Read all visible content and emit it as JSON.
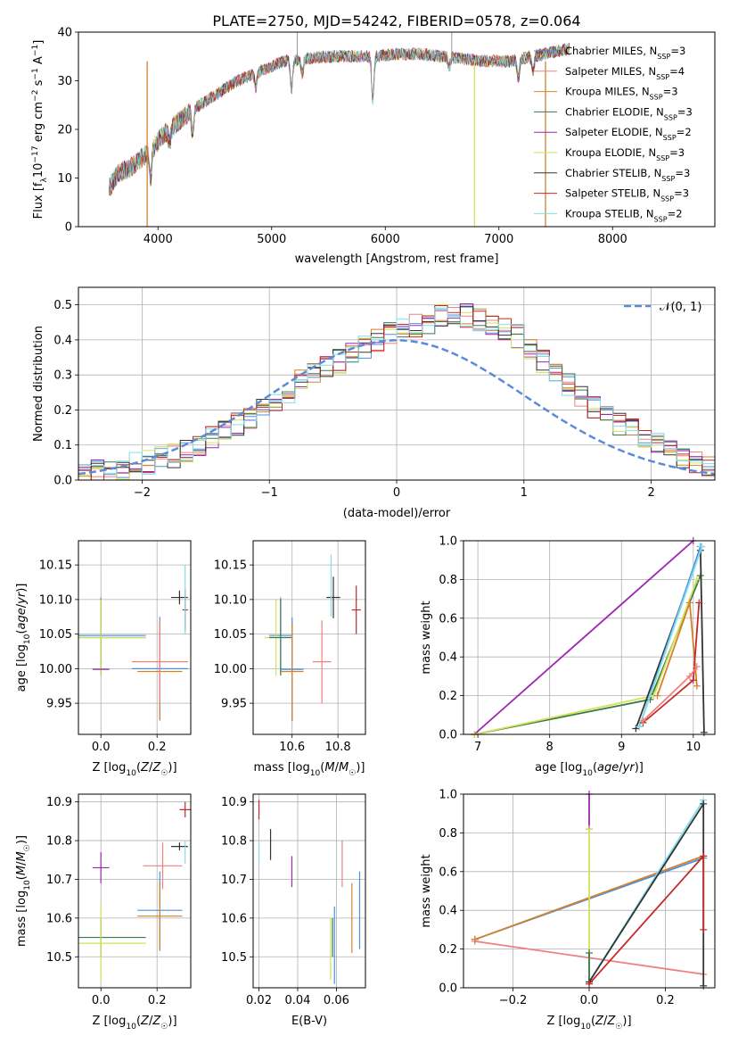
{
  "chart_data": [
    {
      "id": "spectrum",
      "type": "line",
      "title": "PLATE=2750, MJD=54242, FIBERID=0578, z=0.064",
      "xlabel": "wavelength [Angstrom, rest frame]",
      "ylabel": "Flux [f_λ 10^-17 erg cm^-2 s^-1 A^-1]",
      "xlim": [
        3300,
        8900
      ],
      "ylim": [
        0,
        40
      ],
      "xticks": [
        "4000",
        "5000",
        "6000",
        "7000",
        "8000"
      ],
      "yticks": [
        "0",
        "10",
        "20",
        "30",
        "40"
      ],
      "grid": false,
      "legend_position": "top-right",
      "legend": [
        {
          "label": "Chabrier MILES, N_SSP=3",
          "color": "#4a90e2"
        },
        {
          "label": "Salpeter MILES, N_SSP=4",
          "color": "#f08080"
        },
        {
          "label": "Kroupa MILES, N_SSP=3",
          "color": "#d4822a"
        },
        {
          "label": "Chabrier ELODIE, N_SSP=3",
          "color": "#3a7a4a"
        },
        {
          "label": "Salpeter ELODIE, N_SSP=2",
          "color": "#9c27b0"
        },
        {
          "label": "Kroupa ELODIE, N_SSP=3",
          "color": "#d4e157"
        },
        {
          "label": "Chabrier STELIB, N_SSP=3",
          "color": "#333333"
        },
        {
          "label": "Salpeter STELIB, N_SSP=3",
          "color": "#c62828"
        },
        {
          "label": "Kroupa STELIB, N_SSP=2",
          "color": "#80deea"
        }
      ],
      "spectrum_anchors": [
        [
          3570,
          8
        ],
        [
          3650,
          11
        ],
        [
          3750,
          12
        ],
        [
          3850,
          14
        ],
        [
          3950,
          16
        ],
        [
          4050,
          19
        ],
        [
          4150,
          21
        ],
        [
          4300,
          24
        ],
        [
          4500,
          27
        ],
        [
          4700,
          30
        ],
        [
          4900,
          32
        ],
        [
          5100,
          34
        ],
        [
          5300,
          34.5
        ],
        [
          5500,
          35
        ],
        [
          5700,
          35
        ],
        [
          5900,
          35
        ],
        [
          6100,
          35.5
        ],
        [
          6300,
          35.5
        ],
        [
          6500,
          35
        ],
        [
          6700,
          34.5
        ],
        [
          6900,
          34
        ],
        [
          7100,
          34
        ],
        [
          7300,
          35
        ],
        [
          7500,
          36
        ],
        [
          7600,
          36.5
        ]
      ],
      "absorption_features": [
        {
          "x": 3934,
          "depth": 6
        },
        {
          "x": 4102,
          "depth": 3
        },
        {
          "x": 4305,
          "depth": 5
        },
        {
          "x": 4861,
          "depth": 3
        },
        {
          "x": 5175,
          "depth": 6
        },
        {
          "x": 5270,
          "depth": 3
        },
        {
          "x": 5890,
          "depth": 9
        },
        {
          "x": 6563,
          "depth": 2
        },
        {
          "x": 7170,
          "depth": 4
        },
        {
          "x": 7300,
          "depth": 3
        }
      ],
      "masked_drops": [
        {
          "x": 3905,
          "color": "#d4822a"
        },
        {
          "x": 6785,
          "color": "#d4e157"
        },
        {
          "x": 7410,
          "color": "#d4822a"
        }
      ],
      "emission_spikes": [
        {
          "x": 5225,
          "top": 40,
          "color": "#808080"
        },
        {
          "x": 6585,
          "top": 40,
          "color": "#808080"
        }
      ]
    },
    {
      "id": "residuals",
      "type": "line",
      "xlabel": "(data-model)/error",
      "ylabel": "Normed distribution",
      "xlim": [
        -2.5,
        2.5
      ],
      "ylim": [
        0,
        0.55
      ],
      "xticks": [
        "−2",
        "−1",
        "0",
        "1",
        "2"
      ],
      "xtick_values": [
        -2,
        -1,
        0,
        1,
        2
      ],
      "yticks": [
        "0.0",
        "0.1",
        "0.2",
        "0.3",
        "0.4",
        "0.5"
      ],
      "ytick_values": [
        0,
        0.1,
        0.2,
        0.3,
        0.4,
        0.5
      ],
      "grid": true,
      "legend_position": "top-right",
      "legend_label": "𝒩(0, 1)",
      "gaussian_color": "#5b8bd8",
      "bin_width": 0.1,
      "bin_start": -2.5,
      "base_shape": [
        0.02,
        0.025,
        0.03,
        0.035,
        0.045,
        0.05,
        0.06,
        0.07,
        0.085,
        0.1,
        0.12,
        0.14,
        0.16,
        0.18,
        0.2,
        0.23,
        0.25,
        0.28,
        0.31,
        0.33,
        0.34,
        0.36,
        0.38,
        0.4,
        0.42,
        0.43,
        0.44,
        0.45,
        0.47,
        0.48,
        0.47,
        0.46,
        0.45,
        0.43,
        0.41,
        0.38,
        0.34,
        0.31,
        0.27,
        0.24,
        0.21,
        0.18,
        0.16,
        0.14,
        0.12,
        0.1,
        0.08,
        0.065,
        0.05,
        0.04
      ]
    },
    {
      "id": "age_vs_Z",
      "type": "scatter",
      "xlabel": "Z [log10(Z/Z☉)]",
      "ylabel": "age [log10(age/yr)]",
      "xlim": [
        -0.08,
        0.32
      ],
      "ylim": [
        9.905,
        10.185
      ],
      "xticks": [
        "0.0",
        "0.2"
      ],
      "xtick_values": [
        0,
        0.2
      ],
      "yticks": [
        "9.95",
        "10.00",
        "10.05",
        "10.10",
        "10.15"
      ],
      "ytick_values": [
        9.95,
        10.0,
        10.05,
        10.1,
        10.15
      ],
      "grid": true,
      "points": [
        {
          "x": 0.0,
          "y": 10.048,
          "xerr": 0.16,
          "yerr": 0.055,
          "color": "#4a90e2"
        },
        {
          "x": 0.0,
          "y": 10.045,
          "xerr": 0.16,
          "yerr": 0.055,
          "color": "#3a7a4a"
        },
        {
          "x": 0.0,
          "y": 10.045,
          "xerr": 0.16,
          "yerr": 0.055,
          "color": "#d4e157"
        },
        {
          "x": 0.0,
          "y": 9.999,
          "xerr": 0.03,
          "yerr": 0.0,
          "color": "#9c27b0"
        },
        {
          "x": 0.21,
          "y": 10.0,
          "xerr": 0.1,
          "yerr": 0.075,
          "color": "#4a90e2"
        },
        {
          "x": 0.21,
          "y": 9.996,
          "xerr": 0.08,
          "yerr": 0.07,
          "color": "#d4822a"
        },
        {
          "x": 0.21,
          "y": 10.01,
          "xerr": 0.1,
          "yerr": 0.06,
          "color": "#f08080"
        },
        {
          "x": 0.28,
          "y": 10.103,
          "xerr": 0.03,
          "yerr": 0.01,
          "color": "#333333"
        },
        {
          "x": 0.3,
          "y": 10.085,
          "xerr": 0.01,
          "yerr": 0.03,
          "color": "#c62828"
        },
        {
          "x": 0.3,
          "y": 10.1,
          "xerr": 0.0,
          "yerr": 0.05,
          "color": "#80deea"
        }
      ]
    },
    {
      "id": "age_vs_mass",
      "type": "scatter",
      "xlabel": "mass [log10(M/M☉)]",
      "ylabel": "",
      "xlim": [
        10.43,
        10.92
      ],
      "ylim": [
        9.905,
        10.185
      ],
      "xticks": [
        "10.6",
        "10.8"
      ],
      "xtick_values": [
        10.6,
        10.8
      ],
      "yticks": [
        "9.95",
        "10.00",
        "10.05",
        "10.10",
        "10.15"
      ],
      "ytick_values": [
        9.95,
        10.0,
        10.05,
        10.1,
        10.15
      ],
      "grid": true,
      "points": [
        {
          "x": 10.55,
          "y": 10.048,
          "xerr": 0.05,
          "yerr": 0.055,
          "color": "#4a90e2"
        },
        {
          "x": 10.53,
          "y": 10.045,
          "xerr": 0.05,
          "yerr": 0.055,
          "color": "#d4e157"
        },
        {
          "x": 10.55,
          "y": 10.045,
          "xerr": 0.05,
          "yerr": 0.055,
          "color": "#3a7a4a"
        },
        {
          "x": 10.6,
          "y": 9.999,
          "xerr": 0.05,
          "yerr": 0.075,
          "color": "#4a90e2"
        },
        {
          "x": 10.6,
          "y": 9.996,
          "xerr": 0.05,
          "yerr": 0.07,
          "color": "#d4822a"
        },
        {
          "x": 10.73,
          "y": 10.01,
          "xerr": 0.04,
          "yerr": 0.06,
          "color": "#f08080"
        },
        {
          "x": 10.78,
          "y": 10.103,
          "xerr": 0.03,
          "yerr": 0.03,
          "color": "#333333"
        },
        {
          "x": 10.88,
          "y": 10.085,
          "xerr": 0.02,
          "yerr": 0.035,
          "color": "#c62828"
        },
        {
          "x": 10.77,
          "y": 10.12,
          "xerr": 0.0,
          "yerr": 0.045,
          "color": "#80deea"
        }
      ]
    },
    {
      "id": "mass_weight_vs_age",
      "type": "line",
      "xlabel": "age [log10(age/yr)]",
      "ylabel": "mass weight",
      "xlim": [
        6.8,
        10.3
      ],
      "ylim": [
        0,
        1
      ],
      "xticks": [
        "7",
        "8",
        "9",
        "10"
      ],
      "xtick_values": [
        7,
        8,
        9,
        10
      ],
      "yticks": [
        "0.0",
        "0.2",
        "0.4",
        "0.6",
        "0.8",
        "1.0"
      ],
      "ytick_values": [
        0,
        0.2,
        0.4,
        0.6,
        0.8,
        1.0
      ],
      "grid": true,
      "series": [
        {
          "color": "#9c27b0",
          "x": [
            6.95,
            10.0
          ],
          "y": [
            0.0,
            1.0
          ]
        },
        {
          "color": "#3a7a4a",
          "x": [
            6.95,
            9.4,
            10.1
          ],
          "y": [
            0.0,
            0.18,
            0.82
          ]
        },
        {
          "color": "#d4e157",
          "x": [
            6.95,
            9.45,
            10.05
          ],
          "y": [
            0.0,
            0.2,
            0.8
          ]
        },
        {
          "color": "#333333",
          "x": [
            9.2,
            10.1,
            10.15
          ],
          "y": [
            0.03,
            0.95,
            0.01
          ]
        },
        {
          "color": "#4a90e2",
          "x": [
            9.25,
            10.1
          ],
          "y": [
            0.04,
            0.97
          ]
        },
        {
          "color": "#80deea",
          "x": [
            9.25,
            10.12
          ],
          "y": [
            0.04,
            0.97
          ]
        },
        {
          "color": "#d4822a",
          "x": [
            9.5,
            9.95,
            10.05
          ],
          "y": [
            0.2,
            0.68,
            0.25
          ]
        },
        {
          "color": "#c62828",
          "x": [
            9.3,
            10.0,
            10.08
          ],
          "y": [
            0.06,
            0.28,
            0.68
          ]
        },
        {
          "color": "#f08080",
          "x": [
            9.3,
            9.95,
            10.05
          ],
          "y": [
            0.07,
            0.3,
            0.35
          ]
        }
      ]
    },
    {
      "id": "mass_vs_Z",
      "type": "scatter",
      "xlabel": "Z [log10(Z/Z☉)]",
      "ylabel": "mass [log10(M/M☉)]",
      "xlim": [
        -0.08,
        0.32
      ],
      "ylim": [
        10.42,
        10.92
      ],
      "xticks": [
        "0.0",
        "0.2"
      ],
      "xtick_values": [
        0,
        0.2
      ],
      "yticks": [
        "10.5",
        "10.6",
        "10.7",
        "10.8",
        "10.9"
      ],
      "ytick_values": [
        10.5,
        10.6,
        10.7,
        10.8,
        10.9
      ],
      "grid": true,
      "points": [
        {
          "x": 0.0,
          "y": 10.55,
          "xerr": 0.16,
          "yerr": 0.05,
          "color": "#3a7a4a"
        },
        {
          "x": 0.0,
          "y": 10.535,
          "xerr": 0.16,
          "yerr": 0.1,
          "color": "#d4e157"
        },
        {
          "x": 0.0,
          "y": 10.73,
          "xerr": 0.03,
          "yerr": 0.04,
          "color": "#9c27b0"
        },
        {
          "x": 0.21,
          "y": 10.62,
          "xerr": 0.08,
          "yerr": 0.1,
          "color": "#4a90e2"
        },
        {
          "x": 0.21,
          "y": 10.605,
          "xerr": 0.08,
          "yerr": 0.09,
          "color": "#d4822a"
        },
        {
          "x": 0.22,
          "y": 10.735,
          "xerr": 0.07,
          "yerr": 0.06,
          "color": "#f08080"
        },
        {
          "x": 0.28,
          "y": 10.785,
          "xerr": 0.03,
          "yerr": 0.01,
          "color": "#333333"
        },
        {
          "x": 0.3,
          "y": 10.88,
          "xerr": 0.02,
          "yerr": 0.02,
          "color": "#c62828"
        },
        {
          "x": 0.3,
          "y": 10.77,
          "xerr": 0.0,
          "yerr": 0.03,
          "color": "#80deea"
        }
      ]
    },
    {
      "id": "mass_vs_ebv",
      "type": "scatter",
      "xlabel": "E(B-V)",
      "ylabel": "",
      "xlim": [
        0.017,
        0.075
      ],
      "ylim": [
        10.42,
        10.92
      ],
      "xticks": [
        "0.02",
        "0.04",
        "0.06"
      ],
      "xtick_values": [
        0.02,
        0.04,
        0.06
      ],
      "yticks": [
        "10.5",
        "10.6",
        "10.7",
        "10.8",
        "10.9"
      ],
      "ytick_values": [
        10.5,
        10.6,
        10.7,
        10.8,
        10.9
      ],
      "grid": true,
      "points": [
        {
          "x": 0.02,
          "y": 10.88,
          "xerr": 0.0,
          "yerr": 0.025,
          "color": "#c62828"
        },
        {
          "x": 0.02,
          "y": 10.77,
          "xerr": 0.0,
          "yerr": 0.03,
          "color": "#80deea"
        },
        {
          "x": 0.026,
          "y": 10.79,
          "xerr": 0.0,
          "yerr": 0.04,
          "color": "#333333"
        },
        {
          "x": 0.037,
          "y": 10.72,
          "xerr": 0.0,
          "yerr": 0.04,
          "color": "#9c27b0"
        },
        {
          "x": 0.058,
          "y": 10.55,
          "xerr": 0.0,
          "yerr": 0.05,
          "color": "#3a7a4a"
        },
        {
          "x": 0.057,
          "y": 10.52,
          "xerr": 0.0,
          "yerr": 0.08,
          "color": "#d4e157"
        },
        {
          "x": 0.059,
          "y": 10.53,
          "xerr": 0.0,
          "yerr": 0.1,
          "color": "#4a90e2"
        },
        {
          "x": 0.063,
          "y": 10.74,
          "xerr": 0.0,
          "yerr": 0.06,
          "color": "#f08080"
        },
        {
          "x": 0.068,
          "y": 10.6,
          "xerr": 0.0,
          "yerr": 0.09,
          "color": "#d4822a"
        },
        {
          "x": 0.072,
          "y": 10.62,
          "xerr": 0.0,
          "yerr": 0.1,
          "color": "#4a90e2"
        }
      ]
    },
    {
      "id": "mass_weight_vs_Z",
      "type": "line",
      "xlabel": "Z [log10(Z/Z☉)]",
      "ylabel": "mass weight",
      "xlim": [
        -0.33,
        0.33
      ],
      "ylim": [
        0,
        1
      ],
      "xticks": [
        "−0.2",
        "0.0",
        "0.2"
      ],
      "xtick_values": [
        -0.2,
        0,
        0.2
      ],
      "yticks": [
        "0.0",
        "0.2",
        "0.4",
        "0.6",
        "0.8",
        "1.0"
      ],
      "ytick_values": [
        0,
        0.2,
        0.4,
        0.6,
        0.8,
        1.0
      ],
      "grid": true,
      "series": [
        {
          "color": "#f08080",
          "x": [
            -0.3,
            0.3
          ],
          "y": [
            0.24,
            0.07
          ]
        },
        {
          "color": "#4a90e2",
          "x": [
            -0.3,
            0.3
          ],
          "y": [
            0.25,
            0.67
          ]
        },
        {
          "color": "#d4822a",
          "x": [
            -0.3,
            0.3
          ],
          "y": [
            0.25,
            0.68
          ]
        },
        {
          "color": "#9c27b0",
          "x": [
            0.0,
            0.0
          ],
          "y": [
            1.0,
            0.82
          ]
        },
        {
          "color": "#d4e157",
          "x": [
            0.0,
            0.0
          ],
          "y": [
            0.82,
            0.02
          ]
        },
        {
          "color": "#3a7a4a",
          "x": [
            0.0,
            0.0
          ],
          "y": [
            0.18,
            0.03
          ]
        },
        {
          "color": "#80deea",
          "x": [
            0.0,
            0.3
          ],
          "y": [
            0.03,
            0.97
          ]
        },
        {
          "color": "#333333",
          "x": [
            0.0,
            0.3,
            0.3
          ],
          "y": [
            0.03,
            0.95,
            0.01
          ]
        },
        {
          "color": "#c62828",
          "x": [
            0.0,
            0.3,
            0.3
          ],
          "y": [
            0.02,
            0.68,
            0.3
          ]
        }
      ]
    }
  ]
}
